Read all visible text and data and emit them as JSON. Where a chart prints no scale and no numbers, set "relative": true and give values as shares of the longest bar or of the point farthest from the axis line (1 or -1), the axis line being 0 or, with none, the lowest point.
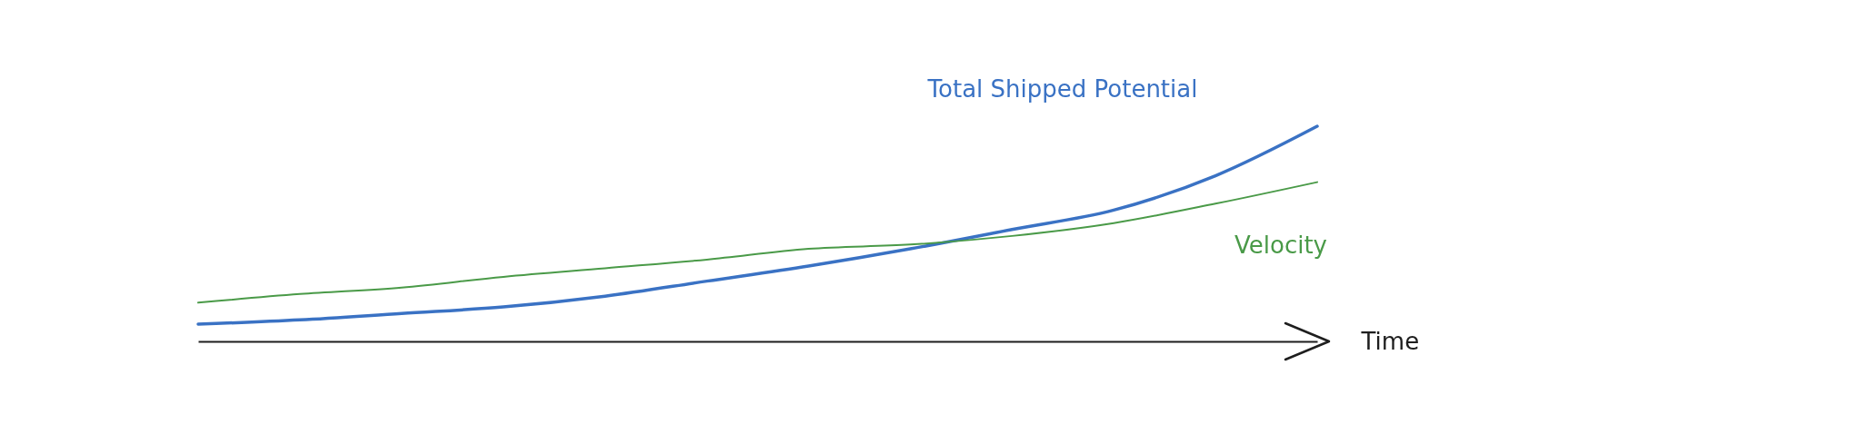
{
  "chart_data": {
    "type": "line",
    "xlabel": "Time",
    "relative": true,
    "marker": "none",
    "categories": [
      null,
      null,
      null,
      null,
      null,
      null,
      null,
      null,
      null,
      null,
      null,
      null
    ],
    "series": [
      {
        "name": "Total Shipped Potential",
        "color": "#3a72c4",
        "values": [
          0.08,
          0.1,
          0.13,
          0.16,
          0.21,
          0.28,
          0.35,
          0.43,
          0.52,
          0.61,
          0.77,
          1
        ]
      },
      {
        "name": "Velocity",
        "color": "#4a9a48",
        "values": [
          0.18,
          0.22,
          0.25,
          0.3,
          0.34,
          0.38,
          0.43,
          0.45,
          0.49,
          0.55,
          0.64,
          0.74
        ]
      }
    ]
  }
}
